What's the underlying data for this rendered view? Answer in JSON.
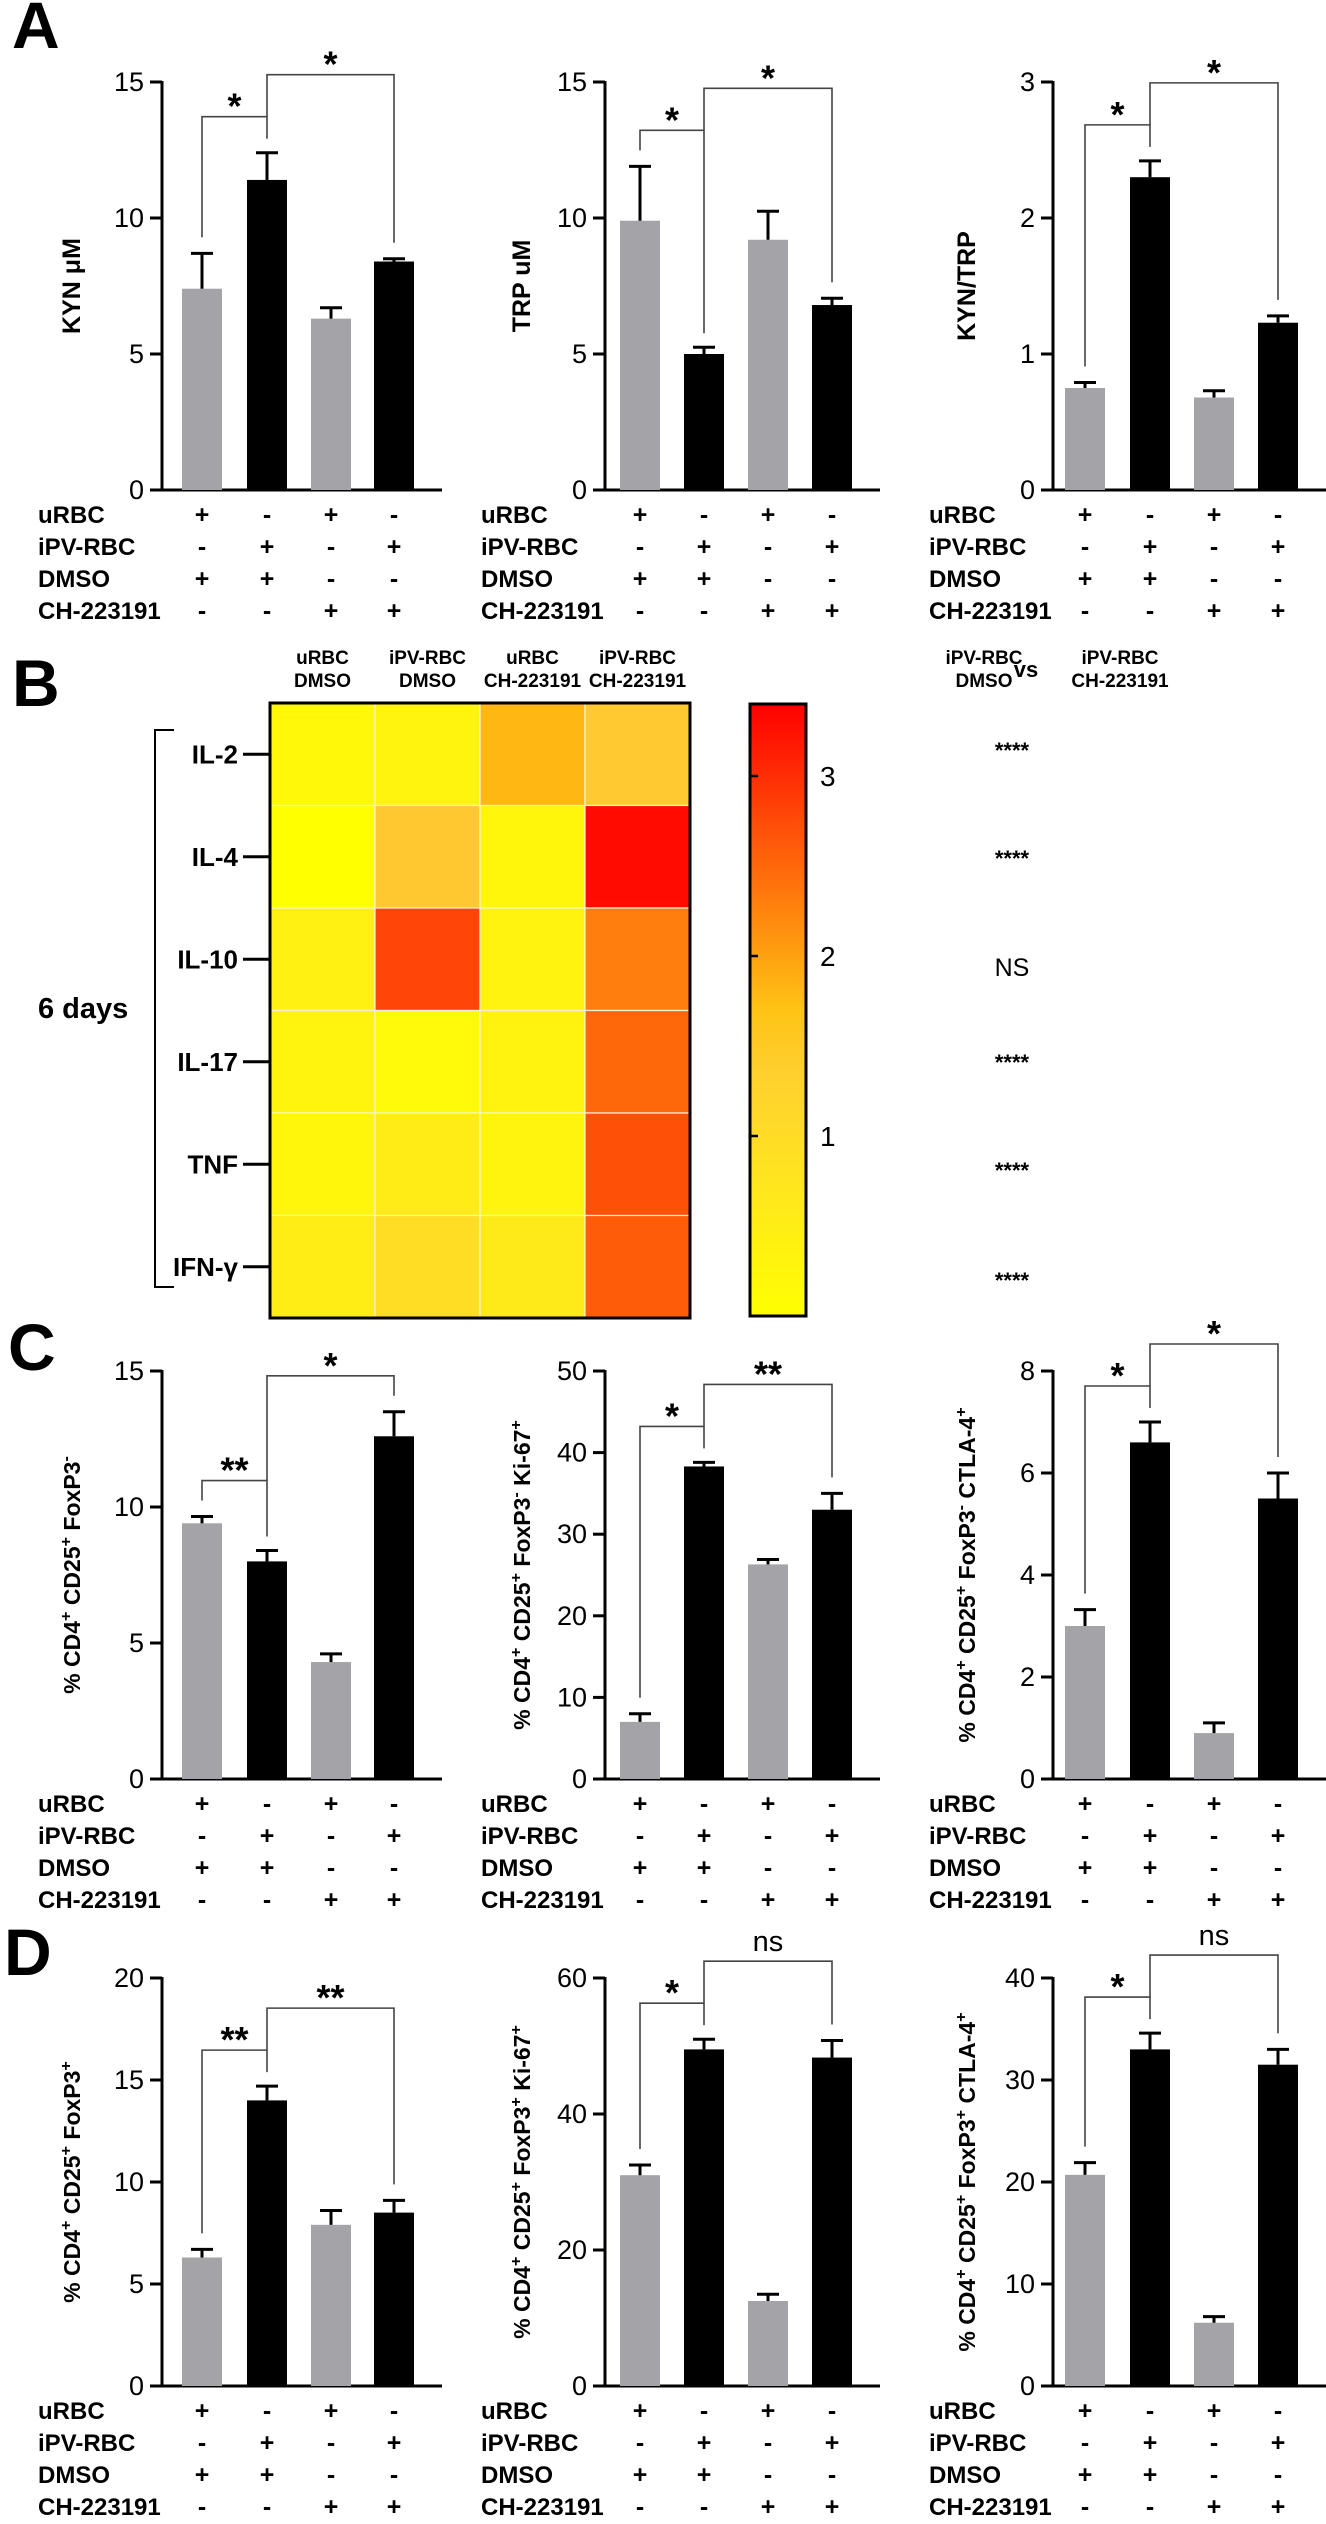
{
  "panel_labels": {
    "A": "A",
    "B": "B",
    "C": "C",
    "D": "D"
  },
  "colors": {
    "gray": "#a4a4a8",
    "black": "#000000",
    "axis": "#000000"
  },
  "condition_rows": [
    {
      "label": "uRBC",
      "signs": [
        "+",
        "-",
        "+",
        "-"
      ]
    },
    {
      "label": "iPV-RBC",
      "signs": [
        "-",
        "+",
        "-",
        "+"
      ]
    },
    {
      "label": "DMSO",
      "signs": [
        "+",
        "+",
        "-",
        "-"
      ]
    },
    {
      "label": "CH-223191",
      "signs": [
        "-",
        "-",
        "+",
        "+"
      ]
    }
  ],
  "chart_data": [
    {
      "id": "A1",
      "panel": "A",
      "type": "bar",
      "ylabel": "KYN μM",
      "ylim": [
        0,
        15
      ],
      "ticks": [
        0,
        5,
        10,
        15
      ],
      "categories": [
        "uRBC+DMSO",
        "iPV-RBC+DMSO",
        "uRBC+CH-223191",
        "iPV-RBC+CH-223191"
      ],
      "values": [
        7.4,
        11.4,
        6.3,
        8.4
      ],
      "errors": [
        1.3,
        1.0,
        0.4,
        0.1
      ],
      "colors": [
        "gray",
        "black",
        "gray",
        "black"
      ],
      "comparisons": [
        {
          "bars": [
            0,
            1
          ],
          "label": "*"
        },
        {
          "bars": [
            1,
            3
          ],
          "label": "*"
        }
      ]
    },
    {
      "id": "A2",
      "panel": "A",
      "type": "bar",
      "ylabel": "TRP uM",
      "ylim": [
        0,
        15
      ],
      "ticks": [
        0,
        5,
        10,
        15
      ],
      "categories": [
        "uRBC+DMSO",
        "iPV-RBC+DMSO",
        "uRBC+CH-223191",
        "iPV-RBC+CH-223191"
      ],
      "values": [
        9.9,
        5.0,
        9.2,
        6.8
      ],
      "errors": [
        2.0,
        0.25,
        1.05,
        0.25
      ],
      "colors": [
        "gray",
        "black",
        "gray",
        "black"
      ],
      "comparisons": [
        {
          "bars": [
            0,
            1
          ],
          "label": "*"
        },
        {
          "bars": [
            1,
            3
          ],
          "label": "*"
        }
      ]
    },
    {
      "id": "A3",
      "panel": "A",
      "type": "bar",
      "ylabel": "KYN/TRP",
      "ylim": [
        0,
        3
      ],
      "ticks": [
        0,
        1,
        2,
        3
      ],
      "categories": [
        "uRBC+DMSO",
        "iPV-RBC+DMSO",
        "uRBC+CH-223191",
        "iPV-RBC+CH-223191"
      ],
      "values": [
        0.75,
        2.3,
        0.68,
        1.23
      ],
      "errors": [
        0.04,
        0.12,
        0.05,
        0.05
      ],
      "colors": [
        "gray",
        "black",
        "gray",
        "black"
      ],
      "comparisons": [
        {
          "bars": [
            0,
            1
          ],
          "label": "*"
        },
        {
          "bars": [
            1,
            3
          ],
          "label": "*"
        }
      ]
    },
    {
      "id": "C1",
      "panel": "C",
      "type": "bar",
      "ylabel": "% CD4⁺ CD25⁺ FoxP3⁻",
      "ylim": [
        0,
        15
      ],
      "ticks": [
        0,
        5,
        10,
        15
      ],
      "categories": [
        "uRBC+DMSO",
        "iPV-RBC+DMSO",
        "uRBC+CH-223191",
        "iPV-RBC+CH-223191"
      ],
      "values": [
        9.4,
        8.0,
        4.3,
        12.6
      ],
      "errors": [
        0.25,
        0.4,
        0.3,
        0.9
      ],
      "colors": [
        "gray",
        "black",
        "gray",
        "black"
      ],
      "comparisons": [
        {
          "bars": [
            0,
            1
          ],
          "label": "**"
        },
        {
          "bars": [
            1,
            3
          ],
          "label": "*"
        }
      ]
    },
    {
      "id": "C2",
      "panel": "C",
      "type": "bar",
      "ylabel": "% CD4⁺ CD25⁺ FoxP3⁻ Ki-67⁺",
      "ylim": [
        0,
        50
      ],
      "ticks": [
        0,
        10,
        20,
        30,
        40,
        50
      ],
      "categories": [
        "uRBC+DMSO",
        "iPV-RBC+DMSO",
        "uRBC+CH-223191",
        "iPV-RBC+CH-223191"
      ],
      "values": [
        7.0,
        38.3,
        26.3,
        33.0
      ],
      "errors": [
        1.0,
        0.5,
        0.6,
        2.0
      ],
      "colors": [
        "gray",
        "black",
        "gray",
        "black"
      ],
      "comparisons": [
        {
          "bars": [
            0,
            1
          ],
          "label": "*"
        },
        {
          "bars": [
            1,
            3
          ],
          "label": "**"
        }
      ]
    },
    {
      "id": "C3",
      "panel": "C",
      "type": "bar",
      "ylabel": "% CD4⁺ CD25⁺ FoxP3⁻ CTLA-4⁺",
      "ylim": [
        0,
        8
      ],
      "ticks": [
        0,
        2,
        4,
        6,
        8
      ],
      "categories": [
        "uRBC+DMSO",
        "iPV-RBC+DMSO",
        "uRBC+CH-223191",
        "iPV-RBC+CH-223191"
      ],
      "values": [
        3.0,
        6.6,
        0.9,
        5.5
      ],
      "errors": [
        0.32,
        0.4,
        0.2,
        0.5
      ],
      "colors": [
        "gray",
        "black",
        "gray",
        "black"
      ],
      "comparisons": [
        {
          "bars": [
            0,
            1
          ],
          "label": "*"
        },
        {
          "bars": [
            1,
            3
          ],
          "label": "*"
        }
      ]
    },
    {
      "id": "D1",
      "panel": "D",
      "type": "bar",
      "ylabel": "% CD4⁺ CD25⁺ FoxP3⁺",
      "ylim": [
        0,
        20
      ],
      "ticks": [
        0,
        5,
        10,
        15,
        20
      ],
      "categories": [
        "uRBC+DMSO",
        "iPV-RBC+DMSO",
        "uRBC+CH-223191",
        "iPV-RBC+CH-223191"
      ],
      "values": [
        6.3,
        14.0,
        7.9,
        8.5
      ],
      "errors": [
        0.4,
        0.7,
        0.7,
        0.6
      ],
      "colors": [
        "gray",
        "black",
        "gray",
        "black"
      ],
      "comparisons": [
        {
          "bars": [
            0,
            1
          ],
          "label": "**"
        },
        {
          "bars": [
            1,
            3
          ],
          "label": "**"
        }
      ]
    },
    {
      "id": "D2",
      "panel": "D",
      "type": "bar",
      "ylabel": "% CD4⁺ CD25⁺ FoxP3⁺ Ki-67⁺",
      "ylim": [
        0,
        60
      ],
      "ticks": [
        0,
        20,
        40,
        60
      ],
      "categories": [
        "uRBC+DMSO",
        "iPV-RBC+DMSO",
        "uRBC+CH-223191",
        "iPV-RBC+CH-223191"
      ],
      "values": [
        31.0,
        49.5,
        12.5,
        48.3
      ],
      "errors": [
        1.5,
        1.5,
        1.0,
        2.5
      ],
      "colors": [
        "gray",
        "black",
        "gray",
        "black"
      ],
      "comparisons": [
        {
          "bars": [
            0,
            1
          ],
          "label": "*"
        },
        {
          "bars": [
            1,
            3
          ],
          "label": "ns"
        }
      ]
    },
    {
      "id": "D3",
      "panel": "D",
      "type": "bar",
      "ylabel": "% CD4⁺ CD25⁺ FoxP3⁺ CTLA-4⁺",
      "ylim": [
        0,
        40
      ],
      "ticks": [
        0,
        10,
        20,
        30,
        40
      ],
      "categories": [
        "uRBC+DMSO",
        "iPV-RBC+DMSO",
        "uRBC+CH-223191",
        "iPV-RBC+CH-223191"
      ],
      "values": [
        20.7,
        33.0,
        6.2,
        31.5
      ],
      "errors": [
        1.2,
        1.6,
        0.6,
        1.5
      ],
      "colors": [
        "gray",
        "black",
        "gray",
        "black"
      ],
      "comparisons": [
        {
          "bars": [
            0,
            1
          ],
          "label": "*"
        },
        {
          "bars": [
            1,
            3
          ],
          "label": "ns"
        }
      ]
    }
  ],
  "heatmap": {
    "type": "heatmap",
    "columns": [
      [
        "uRBC",
        "DMSO"
      ],
      [
        "iPV-RBC",
        "DMSO"
      ],
      [
        "uRBC",
        "CH-223191"
      ],
      [
        "iPV-RBC",
        "CH-223191"
      ]
    ],
    "rows": [
      "IL-2",
      "IL-4",
      "IL-10",
      "IL-17",
      "TNF",
      "IFN-γ"
    ],
    "group_label": "6 days",
    "values": [
      [
        0.2,
        0.3,
        1.8,
        1.5
      ],
      [
        0.0,
        1.6,
        0.25,
        3.3
      ],
      [
        0.4,
        2.8,
        0.35,
        2.3
      ],
      [
        0.3,
        0.15,
        0.35,
        2.5
      ],
      [
        0.25,
        0.55,
        0.3,
        2.7
      ],
      [
        0.5,
        0.95,
        0.6,
        2.6
      ]
    ],
    "scale": {
      "min": 0,
      "max": 3.4,
      "ticks": [
        1,
        2,
        3
      ]
    },
    "comparison_header": {
      "left": [
        "iPV-RBC",
        "DMSO"
      ],
      "vs": "vs",
      "right": [
        "iPV-RBC",
        "CH-223191"
      ]
    },
    "significance": [
      "****",
      "****",
      "NS",
      "****",
      "****",
      "****"
    ]
  }
}
